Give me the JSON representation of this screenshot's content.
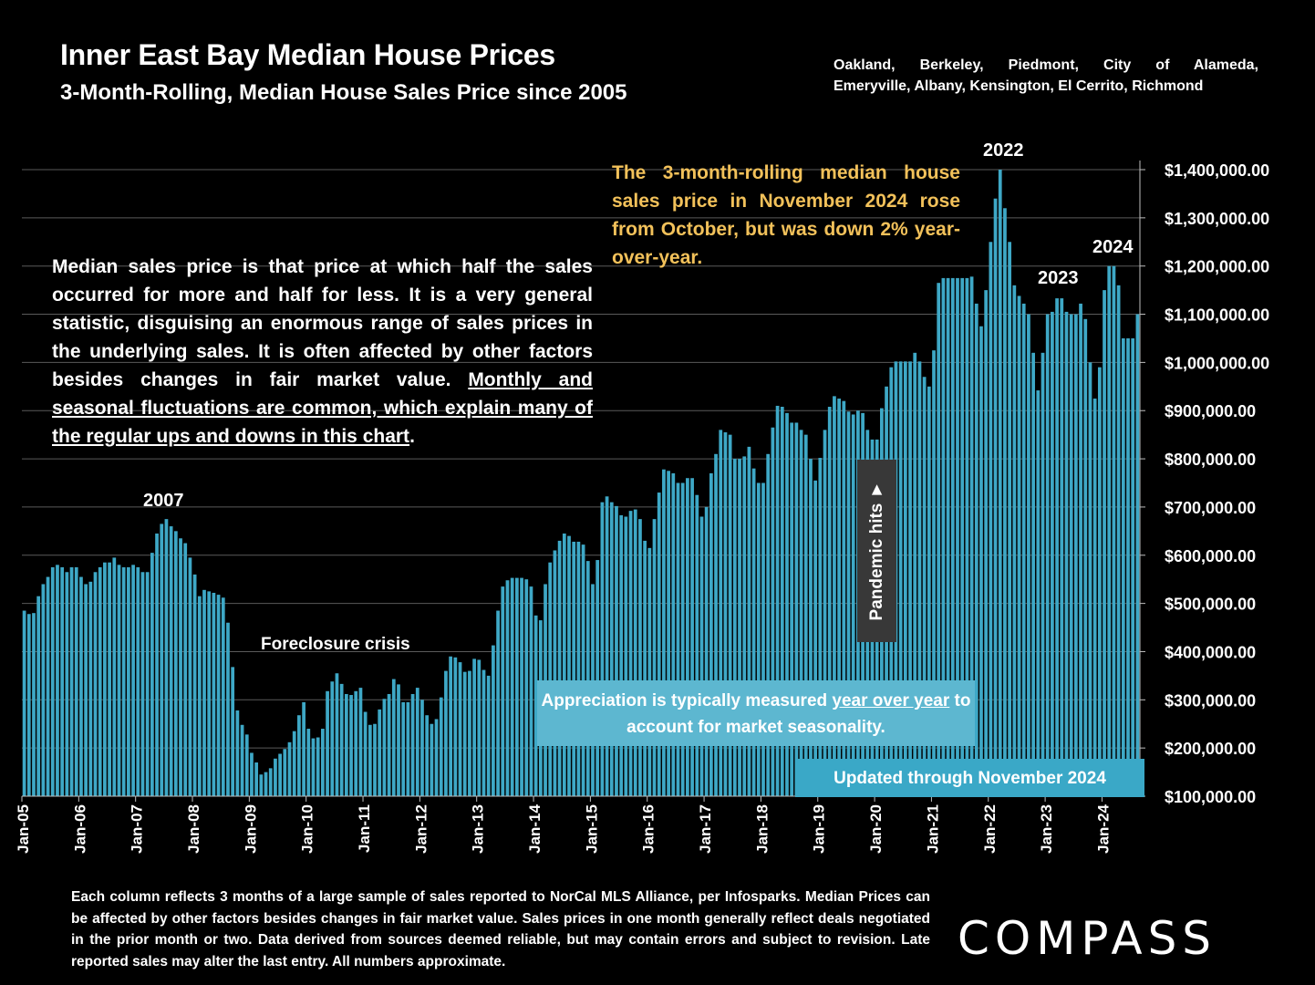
{
  "header": {
    "title": "Inner East Bay Median House Prices",
    "subtitle": "3-Month-Rolling, Median House Sales Price since 2005",
    "cities_line1": "Oakland, Berkeley, Piedmont, City of Alameda,",
    "cities_line2": "Emeryville, Albany, Kensington, El Cerrito, Richmond"
  },
  "notes": {
    "left_plain": "Median sales price is that price at which half the sales occurred for more and half for less. It is a very general statistic, disguising an enormous range of sales prices in the underlying sales. It is often affected by other factors besides changes in fair market value. ",
    "left_underlined": "Monthly and seasonal fluctuations are common, which explain many of the regular ups and downs in this chart",
    "left_end": ".",
    "gold": "The 3-month-rolling median house sales price in November 2024 rose from October, but was down 2% year-over-year.",
    "appreciation_plain": "Appreciation is typically measured ",
    "appreciation_underlined": "year over year",
    "appreciation_end": " to account for market seasonality.",
    "updated": "Updated through November 2024",
    "pandemic": "Pandemic hits ►"
  },
  "annotations": {
    "y2007": "2007",
    "foreclosure": "Foreclosure crisis",
    "y2022": "2022",
    "y2023": "2023",
    "y2024": "2024"
  },
  "footer": {
    "text": "Each column reflects 3 months of a large sample of sales reported to NorCal MLS Alliance, per Infosparks. Median Prices can be affected by other factors besides changes in fair market value. Sales prices in one month generally reflect deals negotiated in the prior month or two. Data derived from sources deemed reliable, but may contain errors and subject to revision. Late reported sales may alter the last entry. All numbers approximate.",
    "logo": "COMPASS"
  },
  "colors": {
    "bar": "#3ea8c6",
    "gold": "#f2c15a",
    "appreciation_box": "#5db7d0",
    "updated_box": "#3aa8c7",
    "pandemic_box": "#383838"
  },
  "chart_data": {
    "type": "bar",
    "x_start": "Jan-05",
    "x_end": "Nov-24",
    "x_tick_labels": [
      "Jan-05",
      "Jan-06",
      "Jan-07",
      "Jan-08",
      "Jan-09",
      "Jan-10",
      "Jan-11",
      "Jan-12",
      "Jan-13",
      "Jan-14",
      "Jan-15",
      "Jan-16",
      "Jan-17",
      "Jan-18",
      "Jan-19",
      "Jan-20",
      "Jan-21",
      "Jan-22",
      "Jan-23",
      "Jan-24"
    ],
    "y_tick_labels": [
      "$100,000.00",
      "$200,000.00",
      "$300,000.00",
      "$400,000.00",
      "$500,000.00",
      "$600,000.00",
      "$700,000.00",
      "$800,000.00",
      "$900,000.00",
      "$1,000,000.00",
      "$1,100,000.00",
      "$1,200,000.00",
      "$1,300,000.00",
      "$1,400,000.00"
    ],
    "ylim": [
      100000,
      1400000
    ],
    "y_axis_side": "right",
    "grid": true,
    "values": [
      485000,
      478000,
      480000,
      515000,
      540000,
      555000,
      575000,
      580000,
      575000,
      565000,
      575000,
      575000,
      555000,
      540000,
      545000,
      565000,
      575000,
      585000,
      585000,
      595000,
      580000,
      575000,
      575000,
      580000,
      575000,
      565000,
      565000,
      605000,
      645000,
      665000,
      675000,
      660000,
      650000,
      635000,
      625000,
      595000,
      560000,
      515000,
      528000,
      525000,
      522000,
      518000,
      512000,
      460000,
      368000,
      278000,
      248000,
      228000,
      190000,
      170000,
      145000,
      150000,
      158000,
      178000,
      188000,
      198000,
      212000,
      235000,
      268000,
      295000,
      240000,
      220000,
      222000,
      240000,
      318000,
      338000,
      355000,
      333000,
      312000,
      310000,
      318000,
      325000,
      275000,
      248000,
      250000,
      280000,
      302000,
      312000,
      343000,
      332000,
      295000,
      295000,
      312000,
      325000,
      300000,
      268000,
      250000,
      260000,
      305000,
      360000,
      390000,
      388000,
      378000,
      358000,
      360000,
      385000,
      383000,
      362000,
      350000,
      413000,
      485000,
      535000,
      548000,
      553000,
      553000,
      553000,
      550000,
      535000,
      475000,
      465000,
      540000,
      585000,
      610000,
      630000,
      645000,
      640000,
      628000,
      628000,
      622000,
      588000,
      540000,
      590000,
      710000,
      722000,
      710000,
      702000,
      683000,
      680000,
      692000,
      695000,
      675000,
      630000,
      615000,
      675000,
      730000,
      778000,
      775000,
      770000,
      750000,
      750000,
      760000,
      760000,
      725000,
      680000,
      700000,
      770000,
      810000,
      860000,
      855000,
      850000,
      800000,
      800000,
      805000,
      825000,
      780000,
      750000,
      750000,
      810000,
      865000,
      910000,
      908000,
      895000,
      875000,
      875000,
      860000,
      850000,
      800000,
      755000,
      802000,
      860000,
      908000,
      930000,
      925000,
      920000,
      898000,
      892000,
      900000,
      895000,
      860000,
      840000,
      840000,
      905000,
      950000,
      990000,
      1002000,
      1002000,
      1002000,
      1002000,
      1020000,
      1002000,
      970000,
      950000,
      1025000,
      1165000,
      1175000,
      1175000,
      1175000,
      1175000,
      1175000,
      1175000,
      1178000,
      1122000,
      1075000,
      1150000,
      1250000,
      1340000,
      1400000,
      1320000,
      1250000,
      1160000,
      1138000,
      1122000,
      1100000,
      1020000,
      942000,
      1020000,
      1100000,
      1105000,
      1133000,
      1133000,
      1105000,
      1100000,
      1100000,
      1122000,
      1090000,
      1000000,
      925000,
      990000,
      1150000,
      1200000,
      1200000,
      1160000,
      1050000,
      1050000,
      1050000,
      1100000
    ]
  }
}
